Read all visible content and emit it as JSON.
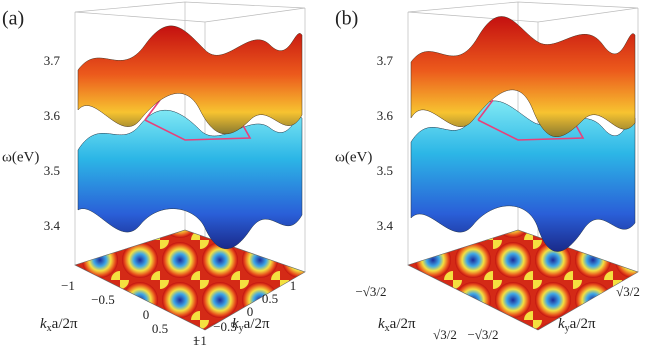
{
  "panels": [
    {
      "label": "(a)",
      "z_axis_label": "ω(eV)",
      "z_ticks": [
        "3.7",
        "3.6",
        "3.5",
        "3.4"
      ],
      "x_ticks": [
        "−1",
        "−0.5",
        "0",
        "0.5",
        "1"
      ],
      "y_ticks": [
        "1",
        "0.5",
        "0",
        "−0.5",
        "−1"
      ],
      "x_axis_label": [
        "k",
        "x",
        "a/2π"
      ],
      "y_axis_label": [
        "k",
        "y",
        "a/2π"
      ]
    },
    {
      "label": "(b)",
      "z_axis_label": "ω(eV)",
      "z_ticks": [
        "3.7",
        "3.6",
        "3.5",
        "3.4"
      ],
      "x_ticks": [
        "−√3/2",
        "√3/2"
      ],
      "y_ticks": [
        "√3/2",
        "−√3/2"
      ],
      "x_axis_label": [
        "k",
        "x",
        "a/2π"
      ],
      "y_axis_label": [
        "k",
        "y",
        "a/2π"
      ]
    }
  ]
}
